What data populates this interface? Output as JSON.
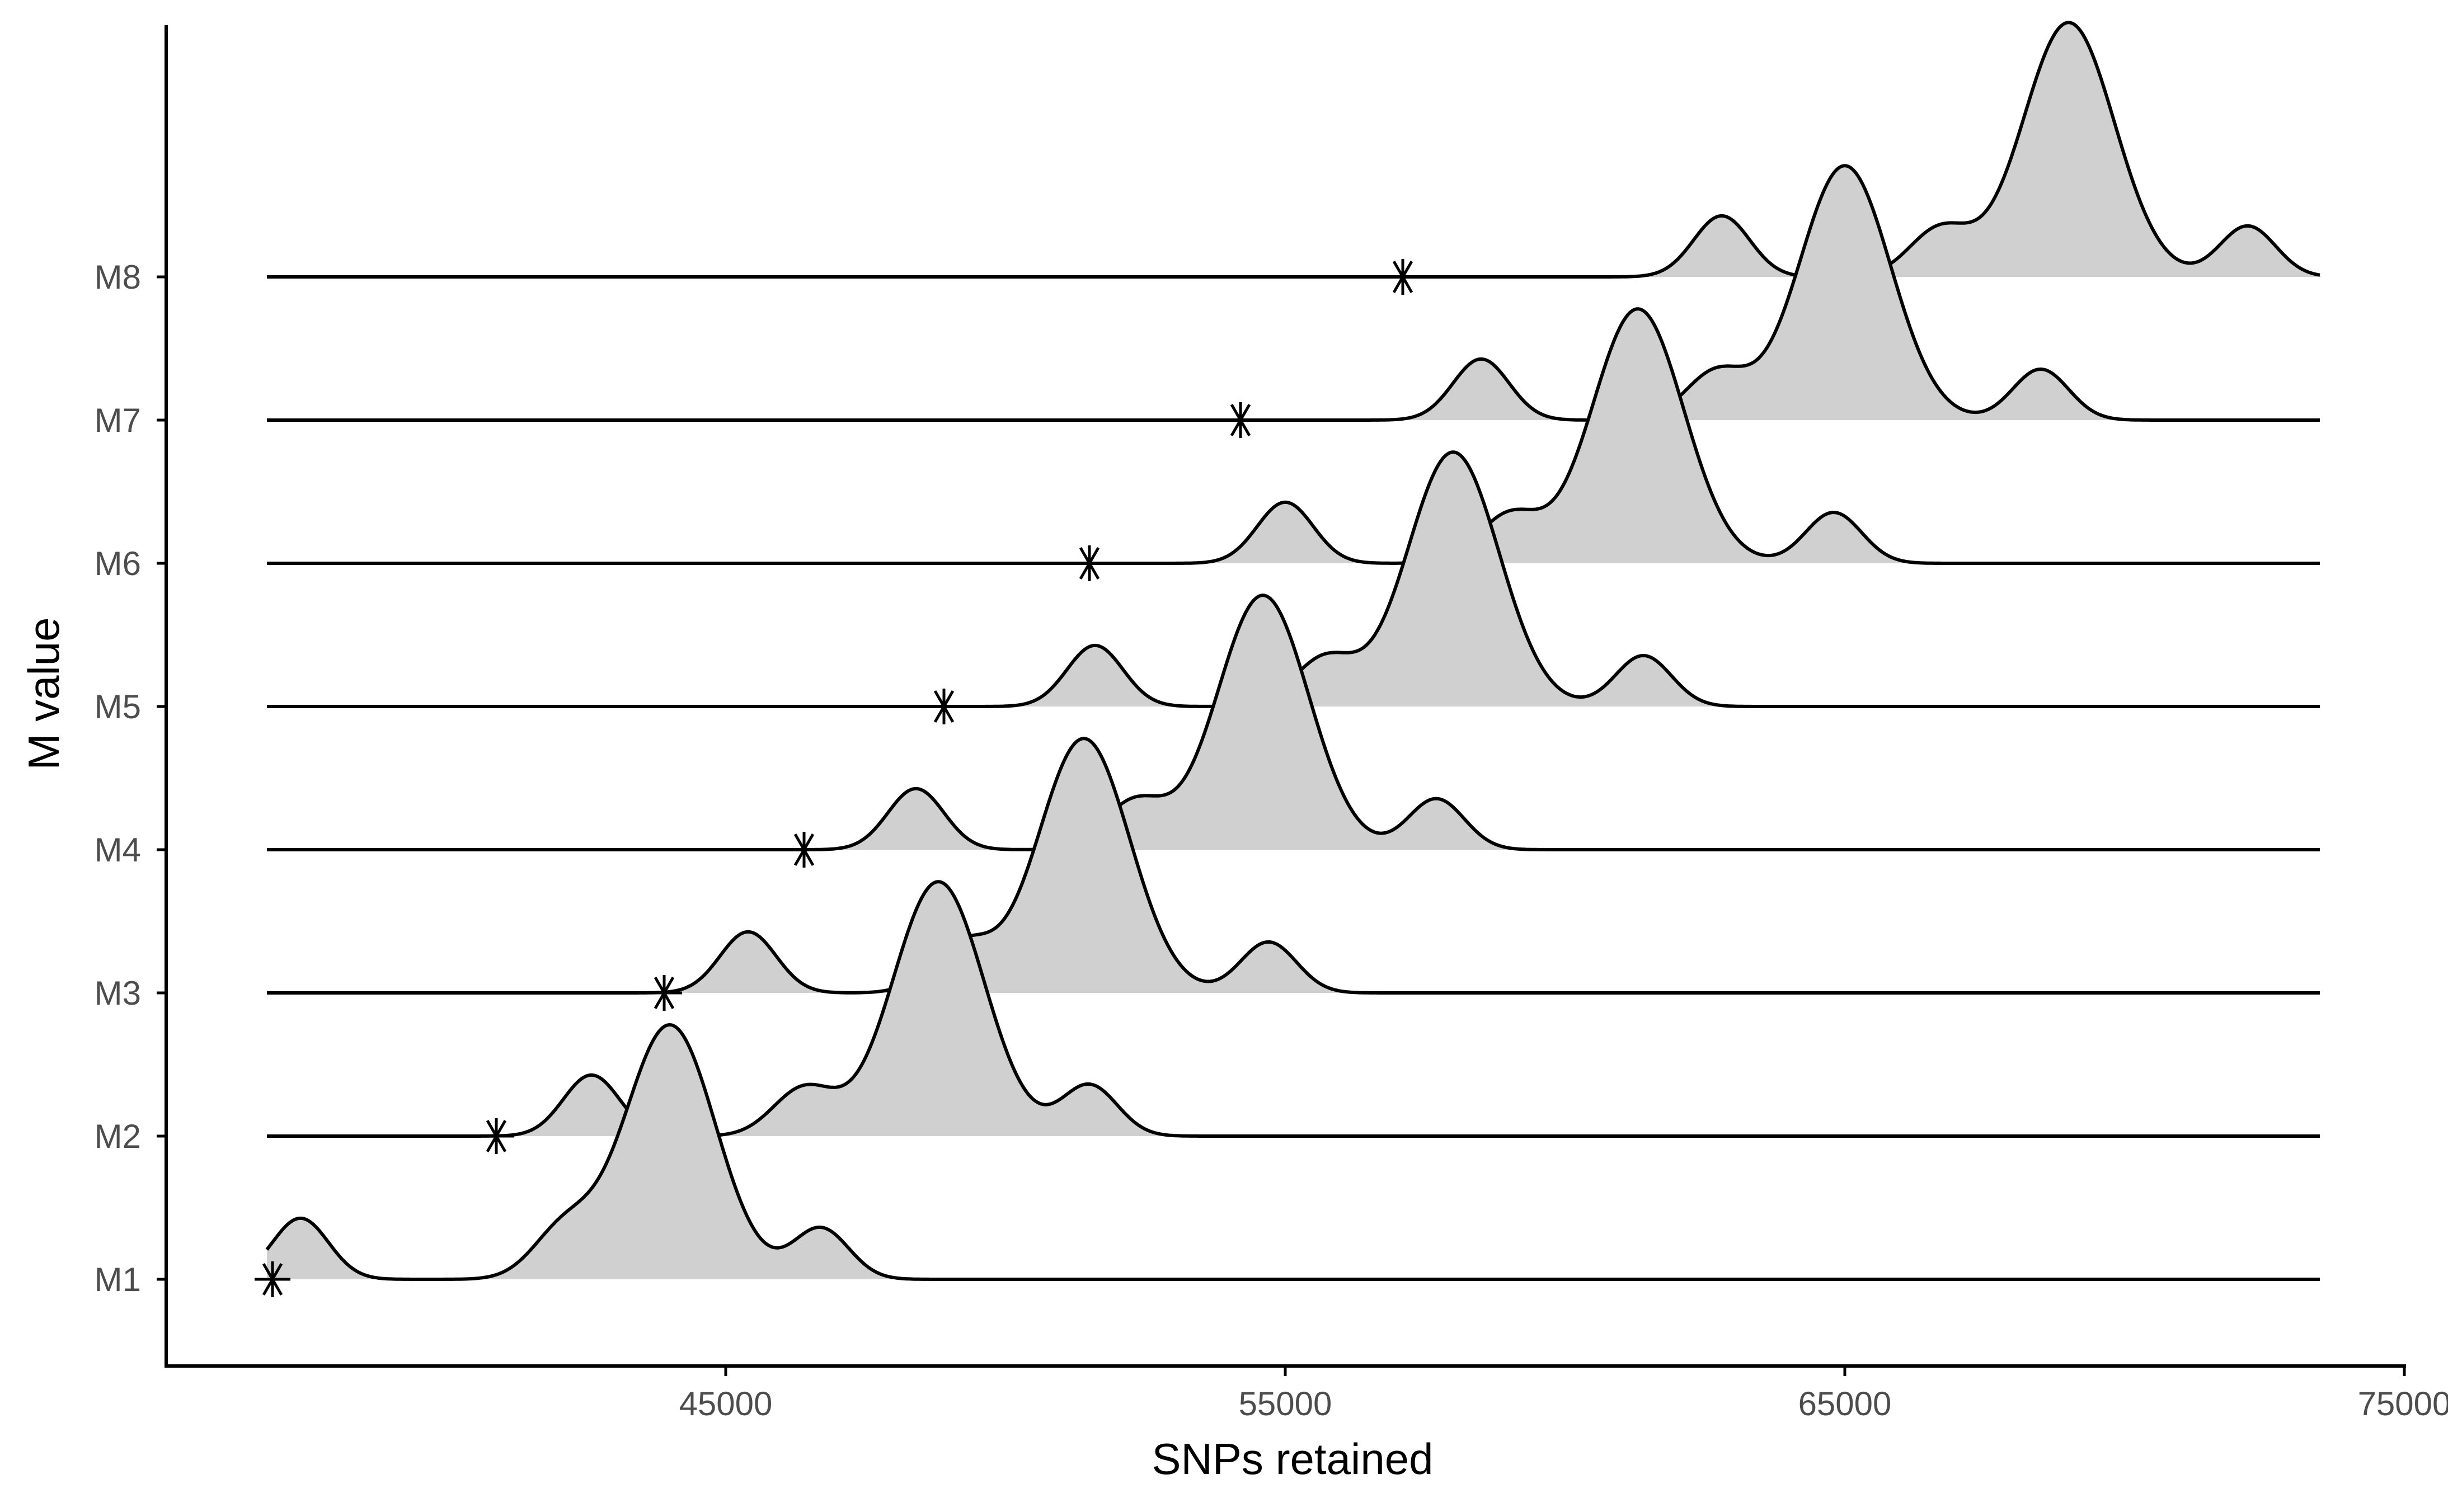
{
  "chart_data": {
    "type": "ridgeline",
    "xlabel": "SNPs retained",
    "ylabel": "M value",
    "xlim": [
      35000,
      75000
    ],
    "x_ticks": [
      45000,
      55000,
      65000,
      75000
    ],
    "x_tick_labels": [
      "45000",
      "55000",
      "65000",
      "75000"
    ],
    "grid": false,
    "fill_color": "#d0d0d0",
    "line_color": "#000000",
    "series": [
      {
        "name": "M1",
        "marker_x": 36900,
        "components": [
          {
            "mu": 44000,
            "sd": 820,
            "w": 0.75
          },
          {
            "mu": 42100,
            "sd": 550,
            "w": 0.14
          },
          {
            "mu": 37400,
            "sd": 500,
            "w": 0.18
          },
          {
            "mu": 46700,
            "sd": 500,
            "w": 0.15
          }
        ]
      },
      {
        "name": "M2",
        "marker_x": 40900,
        "components": [
          {
            "mu": 48800,
            "sd": 820,
            "w": 0.75
          },
          {
            "mu": 46400,
            "sd": 550,
            "w": 0.14
          },
          {
            "mu": 42600,
            "sd": 500,
            "w": 0.18
          },
          {
            "mu": 51500,
            "sd": 500,
            "w": 0.15
          }
        ]
      },
      {
        "name": "M3",
        "marker_x": 43900,
        "components": [
          {
            "mu": 51400,
            "sd": 820,
            "w": 0.75
          },
          {
            "mu": 49200,
            "sd": 550,
            "w": 0.14
          },
          {
            "mu": 45400,
            "sd": 500,
            "w": 0.18
          },
          {
            "mu": 54700,
            "sd": 500,
            "w": 0.15
          }
        ]
      },
      {
        "name": "M4",
        "marker_x": 46400,
        "components": [
          {
            "mu": 54600,
            "sd": 820,
            "w": 0.75
          },
          {
            "mu": 52300,
            "sd": 550,
            "w": 0.14
          },
          {
            "mu": 48400,
            "sd": 500,
            "w": 0.18
          },
          {
            "mu": 57700,
            "sd": 500,
            "w": 0.15
          }
        ]
      },
      {
        "name": "M5",
        "marker_x": 48900,
        "components": [
          {
            "mu": 58000,
            "sd": 820,
            "w": 0.75
          },
          {
            "mu": 55700,
            "sd": 550,
            "w": 0.14
          },
          {
            "mu": 51600,
            "sd": 500,
            "w": 0.18
          },
          {
            "mu": 61400,
            "sd": 500,
            "w": 0.15
          }
        ]
      },
      {
        "name": "M6",
        "marker_x": 51500,
        "components": [
          {
            "mu": 61300,
            "sd": 820,
            "w": 0.75
          },
          {
            "mu": 59000,
            "sd": 550,
            "w": 0.14
          },
          {
            "mu": 55000,
            "sd": 500,
            "w": 0.18
          },
          {
            "mu": 64800,
            "sd": 500,
            "w": 0.15
          }
        ]
      },
      {
        "name": "M7",
        "marker_x": 54200,
        "components": [
          {
            "mu": 65000,
            "sd": 820,
            "w": 0.75
          },
          {
            "mu": 62700,
            "sd": 550,
            "w": 0.14
          },
          {
            "mu": 58500,
            "sd": 500,
            "w": 0.18
          },
          {
            "mu": 68500,
            "sd": 500,
            "w": 0.15
          }
        ]
      },
      {
        "name": "M8",
        "marker_x": 57100,
        "components": [
          {
            "mu": 69000,
            "sd": 820,
            "w": 0.75
          },
          {
            "mu": 66700,
            "sd": 550,
            "w": 0.14
          },
          {
            "mu": 62800,
            "sd": 500,
            "w": 0.18
          },
          {
            "mu": 72200,
            "sd": 500,
            "w": 0.15
          }
        ]
      }
    ]
  }
}
